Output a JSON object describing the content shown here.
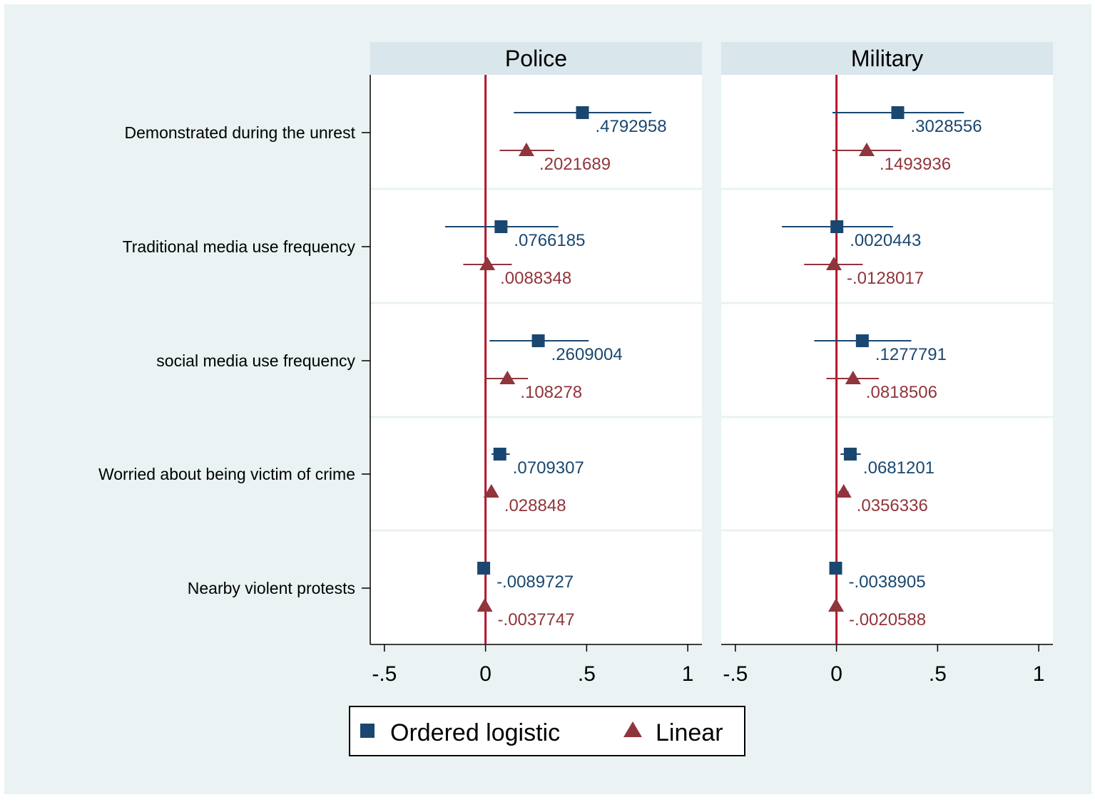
{
  "chart_data": {
    "type": "coefficient-plot",
    "panels": [
      "Police",
      "Military"
    ],
    "categories": [
      "Demonstrated during the unrest",
      "Traditional media use frequency",
      "social media use frequency",
      "Worried about being victim of crime",
      "Nearby violent protests"
    ],
    "series": [
      {
        "name": "Ordered logistic",
        "marker": "square",
        "color": "#1a476f",
        "panels": [
          {
            "estimates": [
              0.4792958,
              0.0766185,
              0.2609004,
              0.0709307,
              -0.0089727
            ],
            "labels": [
              ".4792958",
              ".0766185",
              ".2609004",
              ".0709307",
              "-.0089727"
            ],
            "ci_low": [
              0.14,
              -0.2,
              0.02,
              0.03,
              -0.02
            ],
            "ci_high": [
              0.82,
              0.36,
              0.51,
              0.12,
              0.0
            ]
          },
          {
            "estimates": [
              0.3028556,
              0.0020443,
              0.1277791,
              0.0681201,
              -0.0038905
            ],
            "labels": [
              ".3028556",
              ".0020443",
              ".1277791",
              ".0681201",
              "-.0038905"
            ],
            "ci_low": [
              -0.02,
              -0.27,
              -0.11,
              0.02,
              -0.01
            ],
            "ci_high": [
              0.63,
              0.28,
              0.37,
              0.12,
              0.0
            ]
          }
        ]
      },
      {
        "name": "Linear",
        "marker": "triangle",
        "color": "#90353b",
        "panels": [
          {
            "estimates": [
              0.2021689,
              0.0088348,
              0.108278,
              0.028848,
              -0.0037747
            ],
            "labels": [
              ".2021689",
              ".0088348",
              ".108278",
              ".028848",
              "-.0037747"
            ],
            "ci_low": [
              0.07,
              -0.11,
              0.0,
              0.01,
              -0.01
            ],
            "ci_high": [
              0.34,
              0.13,
              0.21,
              0.05,
              0.0
            ]
          },
          {
            "estimates": [
              0.1493936,
              -0.0128017,
              0.0818506,
              0.0356336,
              -0.0020588
            ],
            "labels": [
              ".1493936",
              "-.0128017",
              ".0818506",
              ".0356336",
              "-.0020588"
            ],
            "ci_low": [
              -0.02,
              -0.16,
              -0.05,
              0.01,
              -0.01
            ],
            "ci_high": [
              0.32,
              0.13,
              0.21,
              0.06,
              0.0
            ]
          }
        ]
      }
    ],
    "x_ticks": [
      -0.5,
      0,
      0.5,
      1
    ],
    "x_tick_labels": [
      "-.5",
      "0",
      ".5",
      "1"
    ],
    "xlim": [
      -0.57,
      1.07
    ],
    "reference_line": 0,
    "reference_color": "#b5152b",
    "legend": {
      "position": "bottom",
      "entries": [
        "Ordered logistic",
        "Linear"
      ]
    }
  }
}
